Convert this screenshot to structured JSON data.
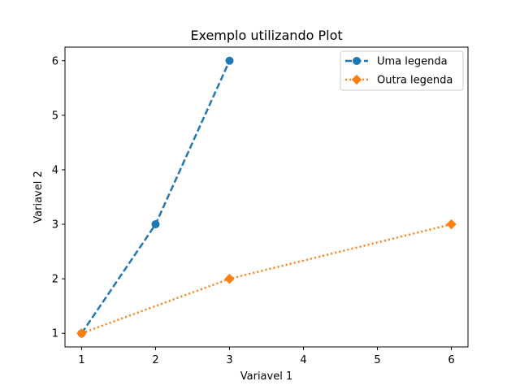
{
  "chart_data": {
    "type": "line",
    "title": "Exemplo utilizando Plot",
    "xlabel": "Variavel 1",
    "ylabel": "Variavel 2",
    "xlim": [
      0.775,
      6.225
    ],
    "ylim": [
      0.75,
      6.25
    ],
    "xticks": [
      "1",
      "2",
      "3",
      "4",
      "5",
      "6"
    ],
    "yticks": [
      "1",
      "2",
      "3",
      "4",
      "5",
      "6"
    ],
    "grid": false,
    "legend_position": "top-right",
    "series": [
      {
        "name": "Uma legenda",
        "x": [
          1,
          2,
          3
        ],
        "y": [
          1,
          3,
          6
        ],
        "color": "#1f77b4",
        "line_style": "dashed",
        "marker": "circle"
      },
      {
        "name": "Outra legenda",
        "x": [
          1,
          3,
          6
        ],
        "y": [
          1,
          2,
          3
        ],
        "color": "#ff7f0e",
        "line_style": "dotted",
        "marker": "diamond"
      }
    ]
  }
}
